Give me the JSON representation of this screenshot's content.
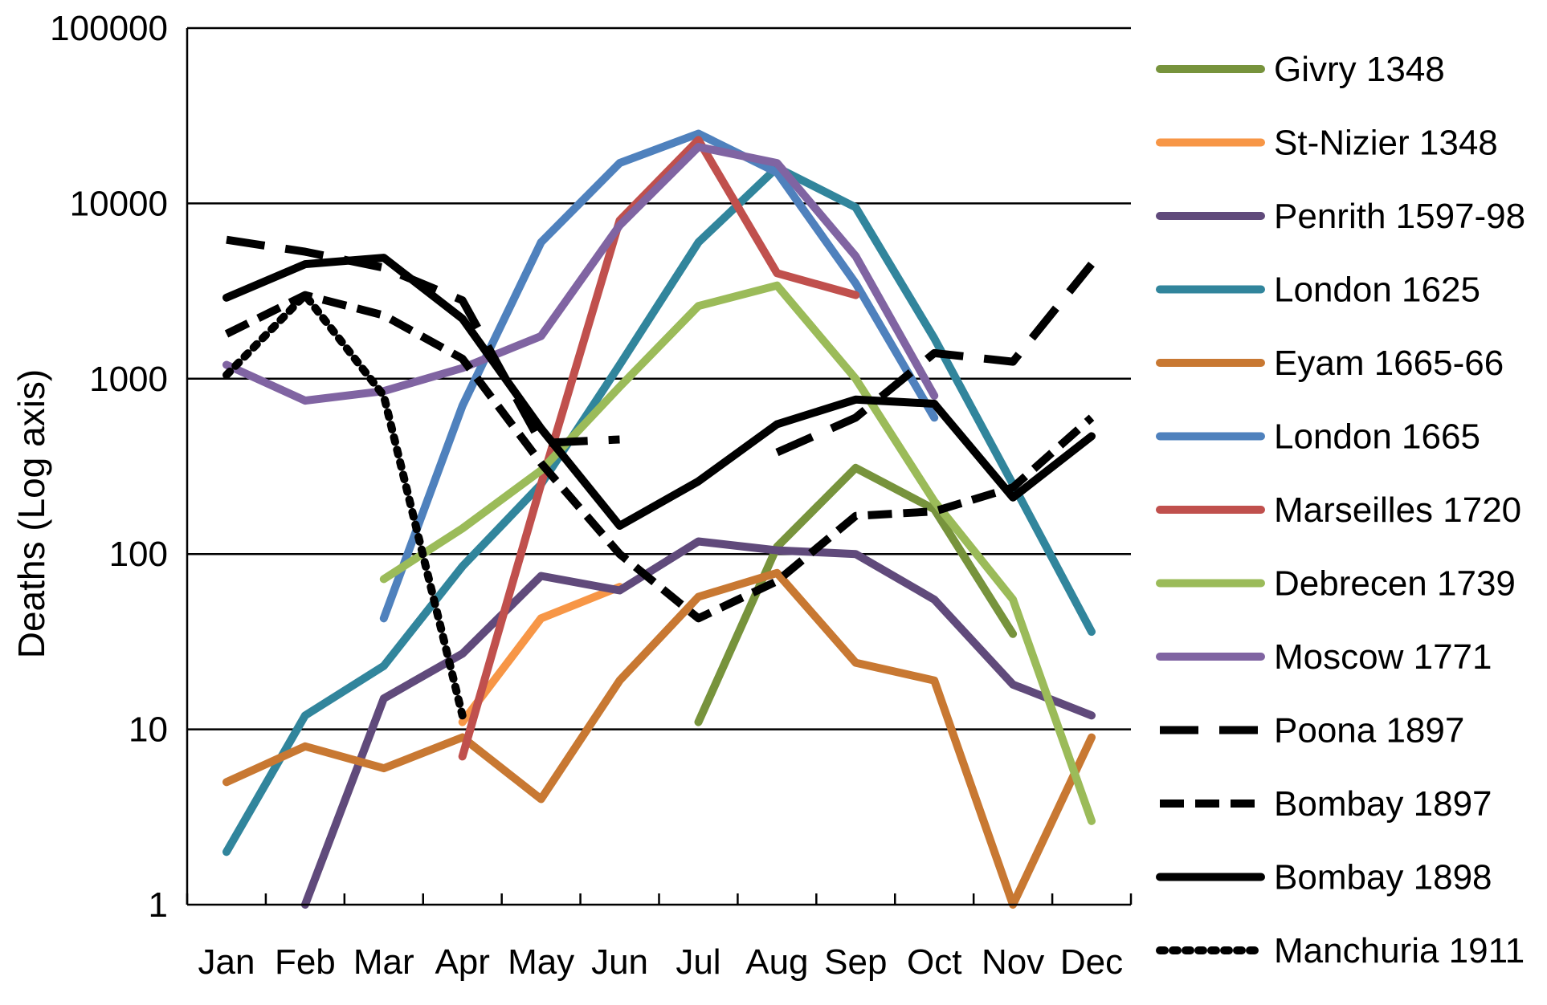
{
  "chart_data": {
    "type": "line",
    "ylabel": "Deaths (Log axis)",
    "xlabel": "",
    "y_scale": "log",
    "ylim": [
      1,
      100000
    ],
    "y_ticks": [
      "1",
      "10",
      "100",
      "1000",
      "10000",
      "100000"
    ],
    "grid": "horizontal",
    "legend_position": "right",
    "categories": [
      "Jan",
      "Feb",
      "Mar",
      "Apr",
      "May",
      "Jun",
      "Jul",
      "Aug",
      "Sep",
      "Oct",
      "Nov",
      "Dec"
    ],
    "series": [
      {
        "name": "Givry 1348",
        "color": "#77933C",
        "dash": "solid",
        "values": [
          null,
          null,
          null,
          null,
          null,
          null,
          11,
          110,
          310,
          180,
          35,
          null
        ]
      },
      {
        "name": "St-Nizier 1348",
        "color": "#F79646",
        "dash": "solid",
        "values": [
          null,
          null,
          null,
          11,
          43,
          65,
          null,
          null,
          null,
          null,
          null,
          null
        ]
      },
      {
        "name": "Penrith 1597-98",
        "color": "#604A7B",
        "dash": "solid",
        "values": [
          null,
          1,
          15,
          27,
          75,
          62,
          118,
          105,
          100,
          55,
          18,
          12
        ]
      },
      {
        "name": "London 1625",
        "color": "#31859C",
        "dash": "solid",
        "values": [
          2,
          12,
          23,
          85,
          250,
          1200,
          6000,
          16000,
          9500,
          1700,
          250,
          36
        ]
      },
      {
        "name": "Eyam 1665-66",
        "color": "#C87832",
        "dash": "solid",
        "values": [
          5,
          8,
          6,
          9,
          4,
          19,
          57,
          78,
          24,
          19,
          1,
          9
        ]
      },
      {
        "name": "London 1665",
        "color": "#4F81BD",
        "dash": "solid",
        "values": [
          null,
          null,
          43,
          700,
          6000,
          17000,
          25000,
          15000,
          3500,
          600,
          null,
          null
        ]
      },
      {
        "name": "Marseilles 1720",
        "color": "#C0504D",
        "dash": "solid",
        "values": [
          null,
          null,
          null,
          7,
          250,
          8000,
          23000,
          4000,
          3000,
          null,
          null,
          null
        ]
      },
      {
        "name": "Debrecen 1739",
        "color": "#9BBB59",
        "dash": "solid",
        "values": [
          null,
          null,
          72,
          140,
          300,
          900,
          2600,
          3400,
          1000,
          200,
          55,
          3
        ]
      },
      {
        "name": "Moscow 1771",
        "color": "#8064A2",
        "dash": "solid",
        "values": [
          1200,
          750,
          850,
          1150,
          1750,
          7500,
          21000,
          17000,
          5000,
          800,
          null,
          null
        ]
      },
      {
        "name": "Poona 1897",
        "color": "#000000",
        "dash": "longdash",
        "values": [
          6200,
          5300,
          4300,
          2800,
          430,
          450,
          null,
          380,
          600,
          1400,
          1250,
          4500
        ]
      },
      {
        "name": "Bombay 1897",
        "color": "#000000",
        "dash": "dash",
        "values": [
          1800,
          3000,
          2300,
          1300,
          330,
          100,
          43,
          70,
          165,
          175,
          240,
          600
        ]
      },
      {
        "name": "Bombay 1898",
        "color": "#000000",
        "dash": "solid",
        "values": [
          2900,
          4500,
          4900,
          2200,
          520,
          145,
          260,
          550,
          760,
          720,
          210,
          470
        ]
      },
      {
        "name": "Manchuria 1911",
        "color": "#000000",
        "dash": "dot",
        "values": [
          1050,
          3000,
          800,
          12,
          null,
          null,
          null,
          null,
          null,
          null,
          null,
          null
        ]
      }
    ]
  }
}
